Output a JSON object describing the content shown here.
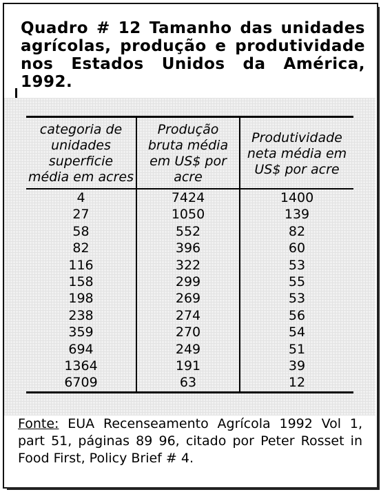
{
  "title": "Quadro # 12 Tamanho das unidades agrícolas, produção e produtividade nos Estados Unidos da América, 1992.",
  "table": {
    "headers": [
      "categoria de unidades superficie média em acres",
      "Produção bruta média em US$ por acre",
      "Produtividade neta média em US$ por acre"
    ],
    "rows": [
      [
        "4",
        "7424",
        "1400"
      ],
      [
        "27",
        "1050",
        "139"
      ],
      [
        "58",
        "552",
        "82"
      ],
      [
        "82",
        "396",
        "60"
      ],
      [
        "116",
        "322",
        "53"
      ],
      [
        "158",
        "299",
        "55"
      ],
      [
        "198",
        "269",
        "53"
      ],
      [
        "238",
        "274",
        "56"
      ],
      [
        "359",
        "270",
        "54"
      ],
      [
        "694",
        "249",
        "51"
      ],
      [
        "1364",
        "191",
        "39"
      ],
      [
        "6709",
        "63",
        "12"
      ]
    ]
  },
  "source": {
    "label": "Fonte:",
    "text": " EUA Recenseamento Agrícola 1992 Vol 1, part 51, páginas 89 96, citado por Peter Rosset in Food First, Policy Brief # 4."
  }
}
